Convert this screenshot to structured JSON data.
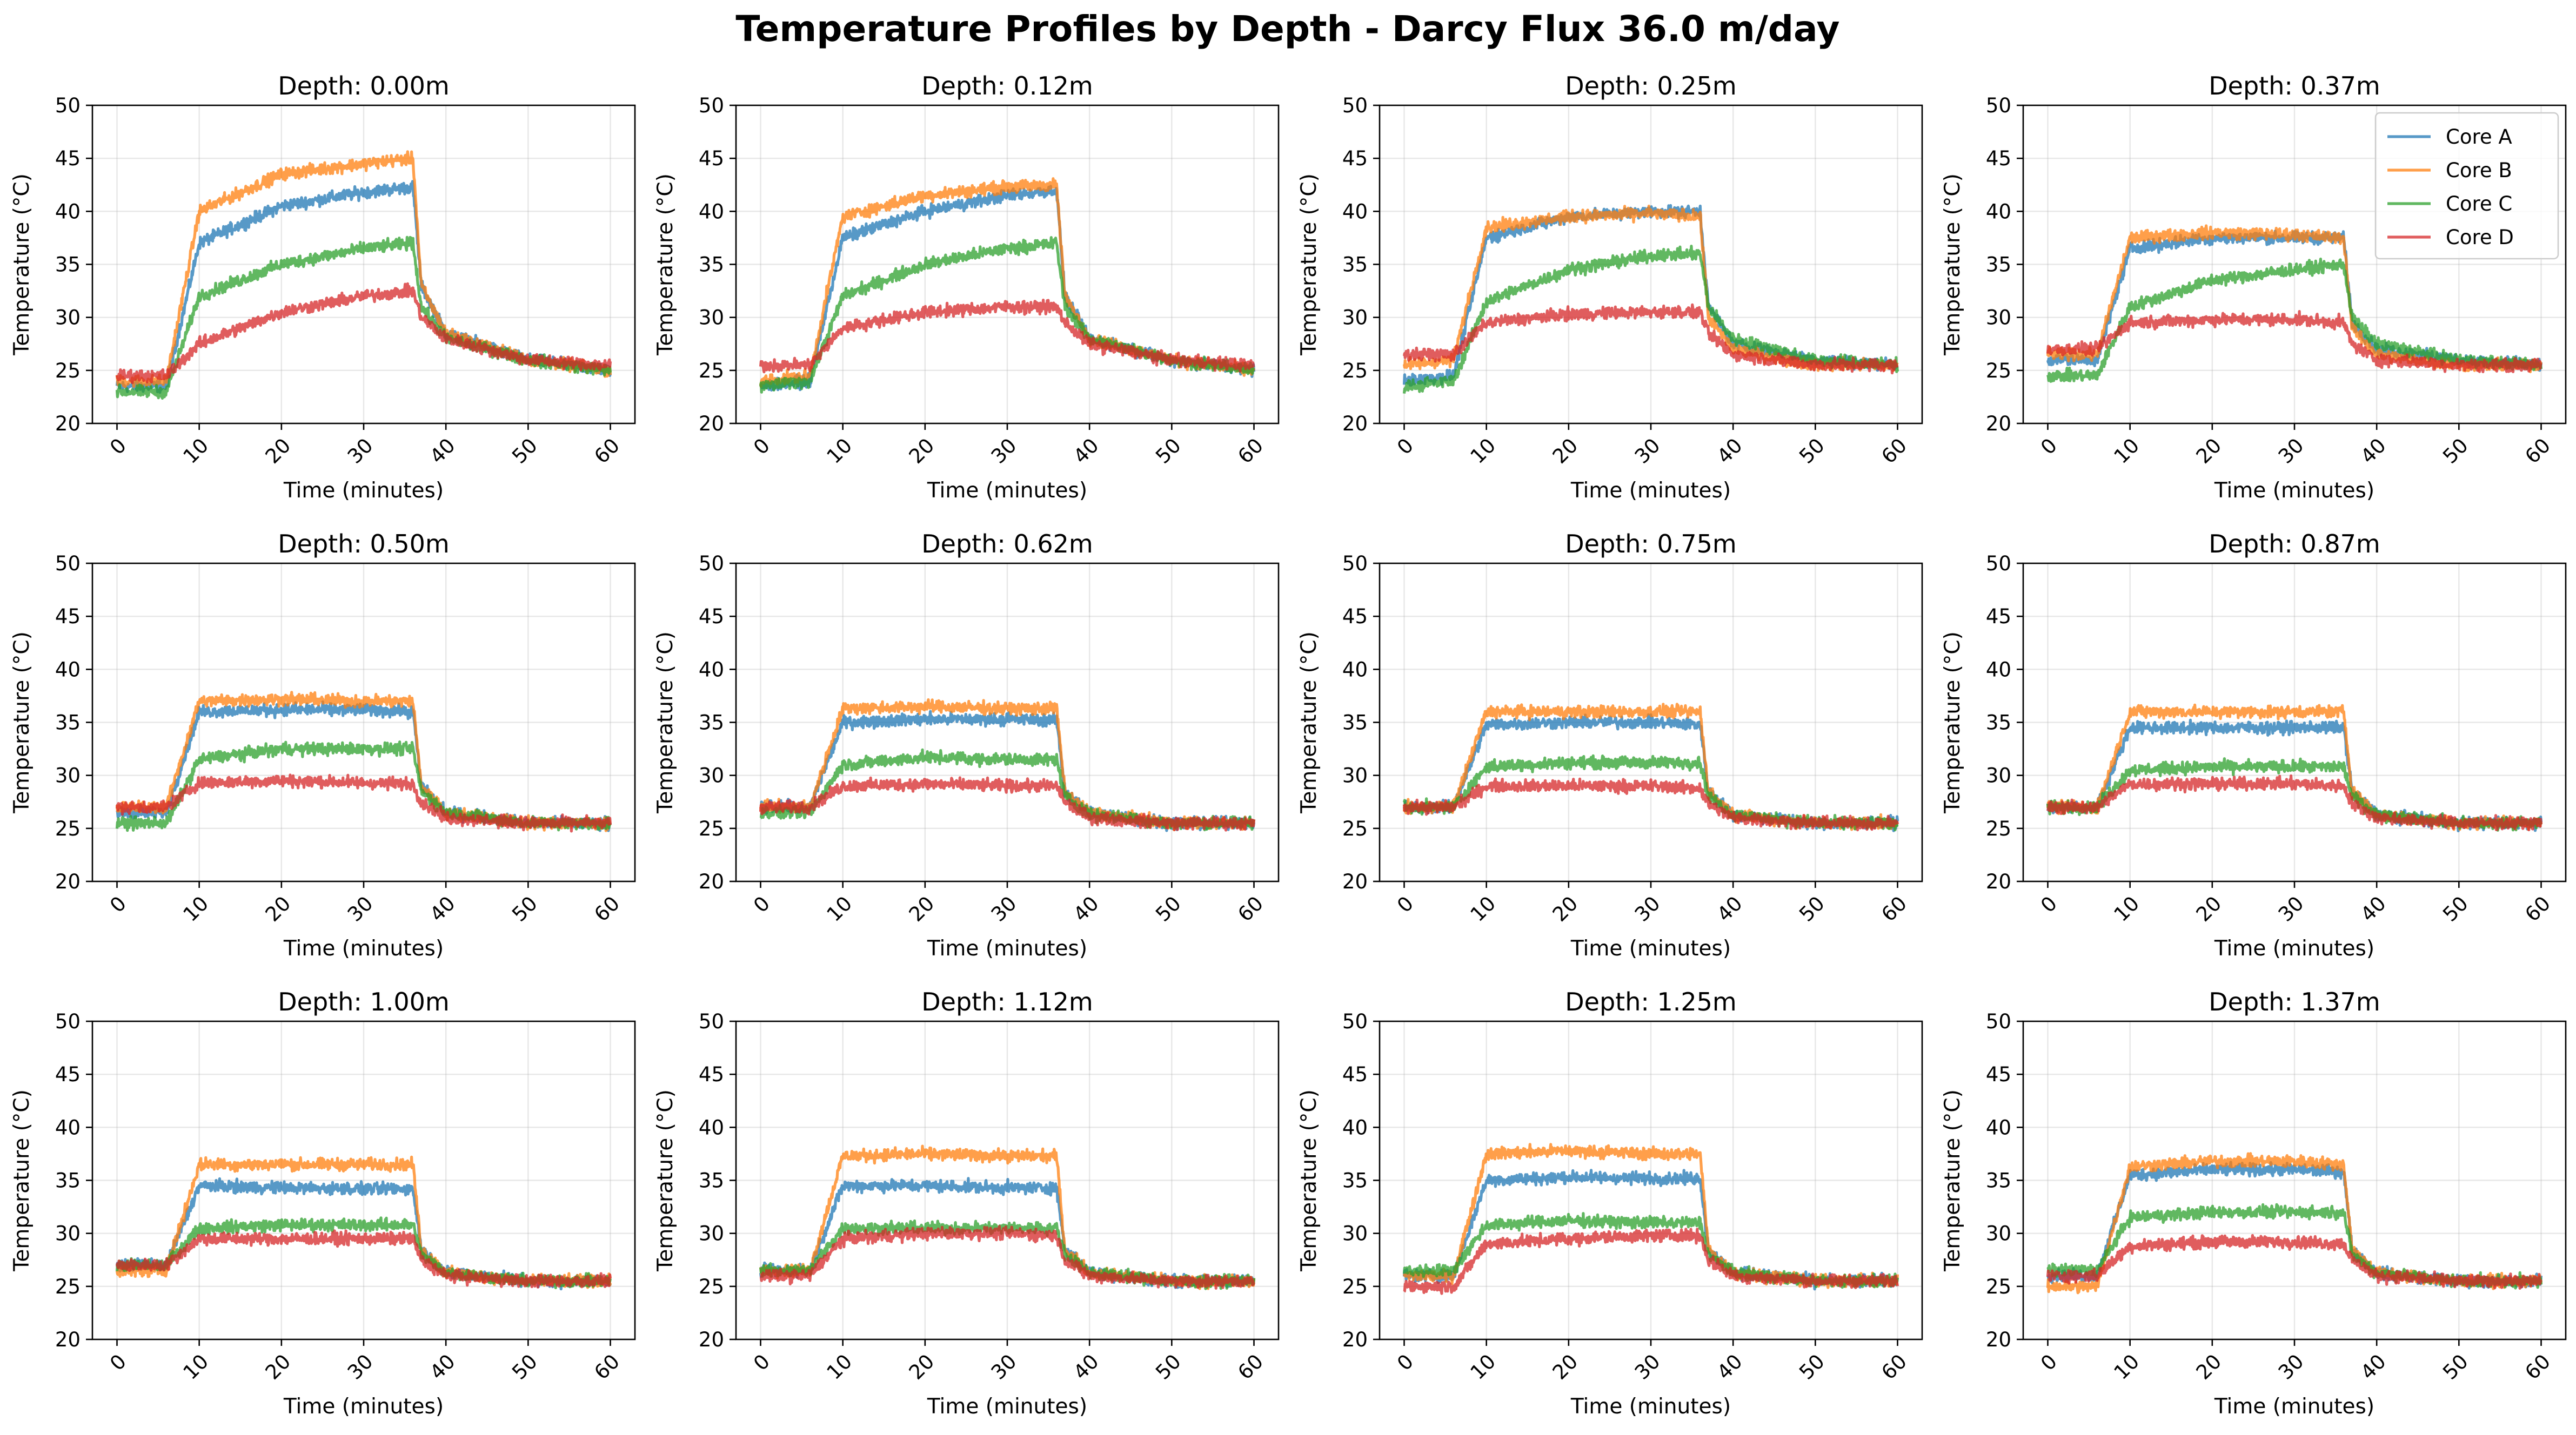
{
  "figure": {
    "title": "Temperature Profiles by Depth - Darcy Flux 36.0 m/day"
  },
  "chart_data": {
    "type": "line",
    "grid": true,
    "legend_placement": "upper-right of the Depth: 0.37m panel",
    "xlabel": "Time (minutes)",
    "ylabel": "Temperature (°C)",
    "xlim": [
      0,
      60
    ],
    "ylim": [
      20,
      50
    ],
    "xticks": [
      0,
      10,
      20,
      30,
      40,
      50,
      60
    ],
    "yticks": [
      20,
      25,
      30,
      35,
      40,
      45,
      50
    ],
    "series_names": [
      "Core A",
      "Core B",
      "Core C",
      "Core D"
    ],
    "series_colors": [
      "#1f77b4",
      "#ff7f0e",
      "#2ca02c",
      "#d62728"
    ],
    "x_keypoints": [
      0,
      6,
      10,
      20,
      30,
      36,
      37,
      40,
      50,
      60
    ],
    "panels": [
      {
        "title": "Depth: 0.00m",
        "series": [
          {
            "name": "Core A",
            "values": [
              23.5,
              23.5,
              37.0,
              40.5,
              41.8,
              42.3,
              33.0,
              28.5,
              26.0,
              25.0
            ]
          },
          {
            "name": "Core B",
            "values": [
              24.0,
              24.0,
              40.0,
              43.5,
              44.5,
              45.0,
              33.0,
              28.5,
              26.0,
              25.0
            ]
          },
          {
            "name": "Core C",
            "values": [
              23.0,
              23.0,
              32.0,
              35.0,
              36.5,
              37.0,
              31.0,
              28.0,
              26.0,
              25.0
            ]
          },
          {
            "name": "Core D",
            "values": [
              24.5,
              24.5,
              27.5,
              30.5,
              32.0,
              32.5,
              30.0,
              28.0,
              26.0,
              25.5
            ]
          }
        ]
      },
      {
        "title": "Depth: 0.12m",
        "series": [
          {
            "name": "Core A",
            "values": [
              23.5,
              24.0,
              37.5,
              40.0,
              41.5,
              42.0,
              32.0,
              28.0,
              26.0,
              25.0
            ]
          },
          {
            "name": "Core B",
            "values": [
              24.0,
              24.5,
              39.5,
              41.5,
              42.3,
              42.5,
              32.0,
              28.0,
              26.0,
              25.0
            ]
          },
          {
            "name": "Core C",
            "values": [
              23.5,
              24.0,
              32.0,
              35.0,
              36.5,
              37.0,
              31.0,
              28.0,
              26.0,
              25.0
            ]
          },
          {
            "name": "Core D",
            "values": [
              25.5,
              25.5,
              29.0,
              30.5,
              31.0,
              31.0,
              29.5,
              27.5,
              26.0,
              25.5
            ]
          }
        ]
      },
      {
        "title": "Depth: 0.25m",
        "series": [
          {
            "name": "Core A",
            "values": [
              24.0,
              24.5,
              37.5,
              39.5,
              40.0,
              40.0,
              31.0,
              27.5,
              26.0,
              25.5
            ]
          },
          {
            "name": "Core B",
            "values": [
              25.5,
              26.0,
              38.5,
              39.5,
              39.8,
              39.5,
              30.0,
              27.0,
              25.5,
              25.5
            ]
          },
          {
            "name": "Core C",
            "values": [
              23.5,
              24.0,
              31.5,
              34.5,
              35.8,
              36.0,
              31.0,
              28.0,
              26.0,
              25.5
            ]
          },
          {
            "name": "Core D",
            "values": [
              26.5,
              26.5,
              29.5,
              30.3,
              30.5,
              30.5,
              28.5,
              26.5,
              25.5,
              25.5
            ]
          }
        ]
      },
      {
        "title": "Depth: 0.37m",
        "series": [
          {
            "name": "Core A",
            "values": [
              26.0,
              26.0,
              36.5,
              37.5,
              37.5,
              37.5,
              29.5,
              27.0,
              26.0,
              25.5
            ]
          },
          {
            "name": "Core B",
            "values": [
              26.5,
              26.5,
              37.5,
              38.0,
              37.8,
              37.5,
              29.0,
              26.5,
              25.5,
              25.5
            ]
          },
          {
            "name": "Core C",
            "values": [
              24.5,
              24.5,
              31.0,
              33.5,
              34.5,
              35.0,
              30.0,
              27.5,
              26.0,
              25.5
            ]
          },
          {
            "name": "Core D",
            "values": [
              27.0,
              27.0,
              29.5,
              29.8,
              29.8,
              29.5,
              27.5,
              26.0,
              25.5,
              25.5
            ]
          }
        ]
      },
      {
        "title": "Depth: 0.50m",
        "series": [
          {
            "name": "Core A",
            "values": [
              26.5,
              26.5,
              36.0,
              36.2,
              36.2,
              36.0,
              29.0,
              26.5,
              25.5,
              25.5
            ]
          },
          {
            "name": "Core B",
            "values": [
              27.0,
              27.0,
              37.0,
              37.2,
              37.0,
              37.0,
              29.0,
              26.5,
              25.5,
              25.5
            ]
          },
          {
            "name": "Core C",
            "values": [
              25.5,
              25.5,
              31.5,
              32.5,
              32.5,
              32.5,
              28.5,
              26.5,
              25.5,
              25.5
            ]
          },
          {
            "name": "Core D",
            "values": [
              27.0,
              27.0,
              29.3,
              29.5,
              29.3,
              29.2,
              27.5,
              26.0,
              25.5,
              25.5
            ]
          }
        ]
      },
      {
        "title": "Depth: 0.62m",
        "series": [
          {
            "name": "Core A",
            "values": [
              27.0,
              27.0,
              35.0,
              35.3,
              35.3,
              35.2,
              28.5,
              26.5,
              25.5,
              25.5
            ]
          },
          {
            "name": "Core B",
            "values": [
              27.0,
              27.0,
              36.3,
              36.5,
              36.3,
              36.3,
              28.5,
              26.5,
              25.5,
              25.5
            ]
          },
          {
            "name": "Core C",
            "values": [
              26.5,
              26.5,
              31.0,
              31.7,
              31.5,
              31.5,
              28.0,
              26.3,
              25.5,
              25.5
            ]
          },
          {
            "name": "Core D",
            "values": [
              27.0,
              27.0,
              29.0,
              29.2,
              29.0,
              29.0,
              27.5,
              26.0,
              25.5,
              25.5
            ]
          }
        ]
      },
      {
        "title": "Depth: 0.75m",
        "series": [
          {
            "name": "Core A",
            "values": [
              27.0,
              27.0,
              34.8,
              35.0,
              35.0,
              34.8,
              28.5,
              26.3,
              25.5,
              25.5
            ]
          },
          {
            "name": "Core B",
            "values": [
              27.0,
              27.0,
              36.0,
              36.0,
              36.0,
              36.0,
              28.5,
              26.3,
              25.5,
              25.5
            ]
          },
          {
            "name": "Core C",
            "values": [
              27.0,
              27.0,
              30.8,
              31.2,
              31.2,
              31.2,
              28.0,
              26.3,
              25.5,
              25.5
            ]
          },
          {
            "name": "Core D",
            "values": [
              27.0,
              27.0,
              29.0,
              29.0,
              29.0,
              28.8,
              27.3,
              26.0,
              25.5,
              25.5
            ]
          }
        ]
      },
      {
        "title": "Depth: 0.87m",
        "series": [
          {
            "name": "Core A",
            "values": [
              27.0,
              27.0,
              34.5,
              34.5,
              34.5,
              34.5,
              28.5,
              26.3,
              25.5,
              25.5
            ]
          },
          {
            "name": "Core B",
            "values": [
              27.0,
              27.0,
              36.0,
              36.0,
              36.0,
              36.0,
              28.5,
              26.3,
              25.5,
              25.5
            ]
          },
          {
            "name": "Core C",
            "values": [
              27.0,
              27.0,
              30.5,
              30.8,
              30.8,
              30.8,
              28.0,
              26.3,
              25.5,
              25.5
            ]
          },
          {
            "name": "Core D",
            "values": [
              27.0,
              27.0,
              29.2,
              29.2,
              29.2,
              29.0,
              27.3,
              26.0,
              25.5,
              25.5
            ]
          }
        ]
      },
      {
        "title": "Depth: 1.00m",
        "series": [
          {
            "name": "Core A",
            "values": [
              27.0,
              27.0,
              34.5,
              34.3,
              34.2,
              34.2,
              28.5,
              26.3,
              25.5,
              25.5
            ]
          },
          {
            "name": "Core B",
            "values": [
              26.5,
              26.5,
              36.5,
              36.5,
              36.5,
              36.5,
              28.5,
              26.3,
              25.5,
              25.5
            ]
          },
          {
            "name": "Core C",
            "values": [
              27.0,
              27.0,
              30.5,
              30.8,
              30.8,
              30.8,
              28.0,
              26.3,
              25.5,
              25.5
            ]
          },
          {
            "name": "Core D",
            "values": [
              27.0,
              27.0,
              29.5,
              29.5,
              29.5,
              29.5,
              27.5,
              26.0,
              25.5,
              25.5
            ]
          }
        ]
      },
      {
        "title": "Depth: 1.12m",
        "series": [
          {
            "name": "Core A",
            "values": [
              26.5,
              26.5,
              34.5,
              34.5,
              34.3,
              34.3,
              28.5,
              26.3,
              25.5,
              25.5
            ]
          },
          {
            "name": "Core B",
            "values": [
              26.5,
              26.5,
              37.3,
              37.5,
              37.3,
              37.3,
              28.5,
              26.3,
              25.5,
              25.5
            ]
          },
          {
            "name": "Core C",
            "values": [
              26.5,
              26.5,
              30.5,
              30.5,
              30.5,
              30.5,
              28.0,
              26.3,
              25.5,
              25.5
            ]
          },
          {
            "name": "Core D",
            "values": [
              26.0,
              26.0,
              29.5,
              30.0,
              30.0,
              29.8,
              27.5,
              26.0,
              25.5,
              25.5
            ]
          }
        ]
      },
      {
        "title": "Depth: 1.25m",
        "series": [
          {
            "name": "Core A",
            "values": [
              26.0,
              26.0,
              35.0,
              35.3,
              35.2,
              35.2,
              28.5,
              26.3,
              25.5,
              25.5
            ]
          },
          {
            "name": "Core B",
            "values": [
              26.0,
              26.0,
              37.5,
              37.8,
              37.5,
              37.5,
              28.5,
              26.3,
              25.5,
              25.5
            ]
          },
          {
            "name": "Core C",
            "values": [
              26.5,
              26.5,
              30.8,
              31.2,
              31.0,
              31.0,
              28.0,
              26.3,
              25.5,
              25.5
            ]
          },
          {
            "name": "Core D",
            "values": [
              25.0,
              25.0,
              29.0,
              29.5,
              29.8,
              29.8,
              27.5,
              26.0,
              25.5,
              25.5
            ]
          }
        ]
      },
      {
        "title": "Depth: 1.37m",
        "series": [
          {
            "name": "Core A",
            "values": [
              26.0,
              26.0,
              35.5,
              36.0,
              36.0,
              35.8,
              28.5,
              26.3,
              25.5,
              25.5
            ]
          },
          {
            "name": "Core B",
            "values": [
              25.0,
              25.0,
              36.3,
              36.8,
              36.8,
              36.5,
              28.5,
              26.3,
              25.5,
              25.5
            ]
          },
          {
            "name": "Core C",
            "values": [
              26.5,
              26.5,
              31.5,
              32.0,
              32.0,
              32.0,
              28.0,
              26.3,
              25.5,
              25.5
            ]
          },
          {
            "name": "Core D",
            "values": [
              26.0,
              26.0,
              28.8,
              29.2,
              29.2,
              29.0,
              27.5,
              26.0,
              25.5,
              25.5
            ]
          }
        ]
      }
    ]
  }
}
